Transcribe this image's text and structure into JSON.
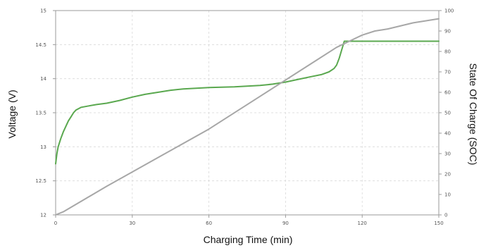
{
  "chart_data": {
    "type": "line",
    "title": "",
    "xlabel": "Charging Time (min)",
    "ylabel": "Voltage (V)",
    "y2label": "State Of Charge (SOC)",
    "xlim": [
      0,
      150
    ],
    "ylim": [
      12,
      15
    ],
    "y2lim": [
      0,
      100
    ],
    "x_ticks": [
      "0",
      "30",
      "60",
      "90",
      "120",
      "150"
    ],
    "y_ticks": [
      "12",
      "12.5",
      "13",
      "13.5",
      "14",
      "14.5",
      "15"
    ],
    "y2_ticks": [
      "0",
      "10",
      "20",
      "30",
      "40",
      "50",
      "60",
      "70",
      "80",
      "90",
      "100"
    ],
    "grid": true,
    "colors": {
      "voltage": "#5aa84f",
      "soc": "#a7a7a7",
      "grid": "#d9d9d9",
      "axis": "#9a9a9a"
    },
    "series": [
      {
        "name": "Voltage",
        "axis": "left",
        "x": [
          0,
          0.5,
          1,
          2,
          3,
          4,
          5,
          6,
          7,
          8,
          10,
          13,
          16,
          20,
          25,
          30,
          35,
          40,
          45,
          50,
          60,
          70,
          75,
          80,
          85,
          90,
          95,
          100,
          104,
          107,
          109,
          110,
          111,
          113,
          115,
          120,
          130,
          140,
          150
        ],
        "y": [
          12.75,
          12.9,
          13.0,
          13.12,
          13.22,
          13.3,
          13.38,
          13.44,
          13.5,
          13.54,
          13.58,
          13.6,
          13.62,
          13.64,
          13.68,
          13.73,
          13.77,
          13.8,
          13.83,
          13.85,
          13.87,
          13.88,
          13.89,
          13.9,
          13.92,
          13.95,
          13.99,
          14.03,
          14.06,
          14.1,
          14.15,
          14.2,
          14.3,
          14.55,
          14.55,
          14.55,
          14.55,
          14.55,
          14.55
        ]
      },
      {
        "name": "SOC",
        "axis": "right",
        "x": [
          0,
          3,
          20,
          40,
          60,
          80,
          100,
          110,
          120,
          125,
          130,
          140,
          150
        ],
        "y": [
          0,
          1.5,
          14,
          28,
          42,
          58,
          74,
          82,
          88,
          90,
          91,
          94,
          96
        ]
      }
    ]
  }
}
